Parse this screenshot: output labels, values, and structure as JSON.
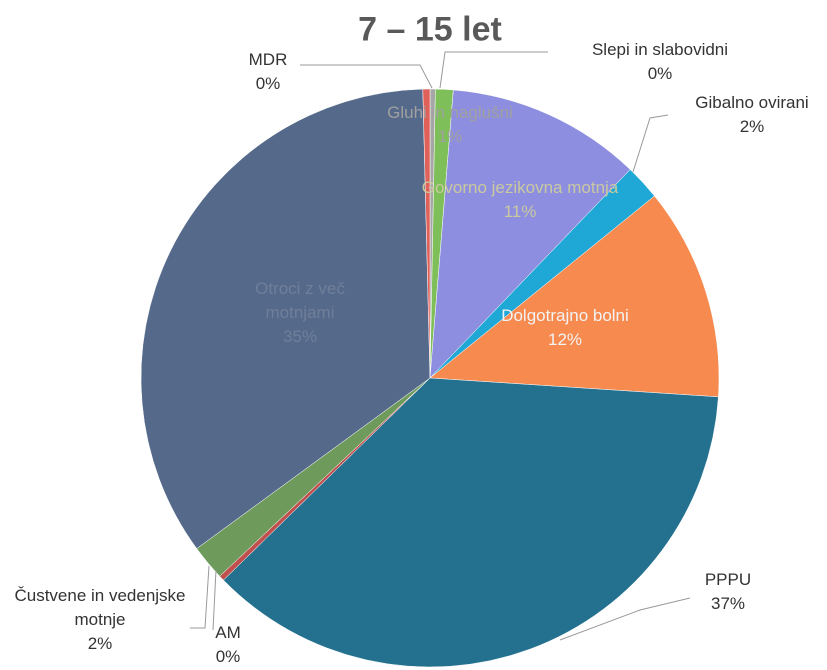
{
  "chart_data": {
    "type": "pie",
    "title": "7 – 15 let",
    "categories": [
      "Slepi in slabovidni",
      "Gluhi in naglušni",
      "Govorno jezikovna motnja",
      "Gibalno ovirani",
      "Dolgotrajno bolni",
      "PPPU",
      "AM",
      "Čustvene in vedenjske motnje",
      "Otroci z več motnjami",
      "MDR"
    ],
    "values": [
      0.3,
      1,
      11,
      2,
      12,
      37,
      0.3,
      2,
      35,
      0.4
    ],
    "value_labels": [
      "0%",
      "1%",
      "11%",
      "2%",
      "12%",
      "37%",
      "0%",
      "2%",
      "35%",
      "0%"
    ],
    "colors": [
      "#a6a6a6",
      "#7fbf5a",
      "#8e8ee0",
      "#1fa7d6",
      "#f78a4f",
      "#24708f",
      "#c0504d",
      "#6e9a5c",
      "#55698a",
      "#e0605a"
    ]
  }
}
